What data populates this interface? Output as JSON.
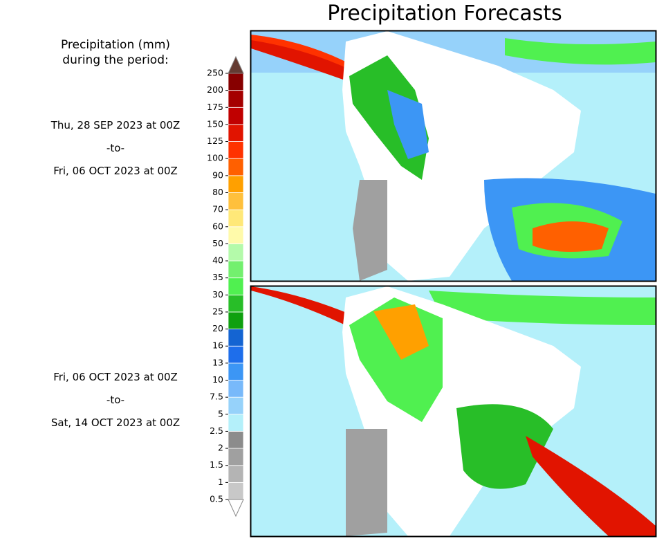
{
  "title": "Precipitation Forecasts",
  "legend": {
    "title_lines": [
      "Precipitation (mm)",
      "during the period:"
    ],
    "ticks": [
      0.5,
      1,
      1.5,
      2,
      2.5,
      5,
      7.5,
      10,
      13,
      16,
      20,
      25,
      30,
      35,
      40,
      50,
      60,
      70,
      80,
      90,
      100,
      125,
      150,
      175,
      200,
      250
    ],
    "colors": [
      "#c8c8c8",
      "#b4b4b4",
      "#a0a0a0",
      "#8c8c8c",
      "#b4f0fa",
      "#96d2fa",
      "#78b9fa",
      "#3c96f5",
      "#1e6eeb",
      "#1464d2",
      "#0fa00f",
      "#28be28",
      "#50f050",
      "#73f06e",
      "#b4faaa",
      "#fffaaa",
      "#ffe878",
      "#ffc03c",
      "#ffa000",
      "#ff6000",
      "#ff3200",
      "#e11400",
      "#c00000",
      "#a50000",
      "#870000"
    ],
    "below_color": "#ffffff",
    "above_color": "#643b32"
  },
  "periods": [
    {
      "start": "Thu, 28 SEP 2023 at 00Z",
      "sep": "-to-",
      "end": "Fri, 06 OCT 2023 at 00Z"
    },
    {
      "start": "Fri, 06 OCT 2023 at 00Z",
      "sep": "-to-",
      "end": "Sat, 14 OCT 2023 at 00Z"
    }
  ]
}
